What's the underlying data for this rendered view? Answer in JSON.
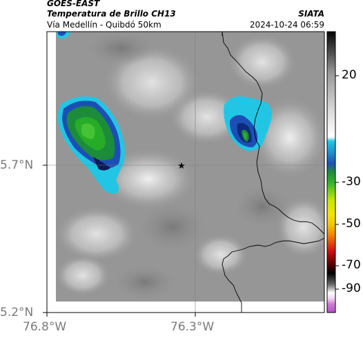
{
  "header": {
    "satellite": "GOES-EAST",
    "product": "Temperatura de Brillo CH13",
    "organization": "SIATA",
    "route": "Vía Medellín - Quibdó 50km",
    "datetime": "2024-10-24 06:59"
  },
  "axes": {
    "lat_labels": [
      "5.7°N",
      "5.2°N"
    ],
    "lon_labels": [
      "76.8°W",
      "76.3°W"
    ]
  },
  "colorbar": {
    "ticks": [
      "20",
      "-30",
      "-50",
      "-70",
      "-90"
    ],
    "palette": {
      "warm": "#f4f4f4",
      "cold_cyan": "#1fb7d6",
      "blue": "#1c4fb5",
      "green": "#1aa31a",
      "yellow": "#f2e600",
      "orange": "#ef7a00",
      "red": "#d11010",
      "black": "#000000",
      "magenta": "#c24bc8"
    }
  },
  "map": {
    "marker_icon": "star-icon",
    "grid": true
  }
}
